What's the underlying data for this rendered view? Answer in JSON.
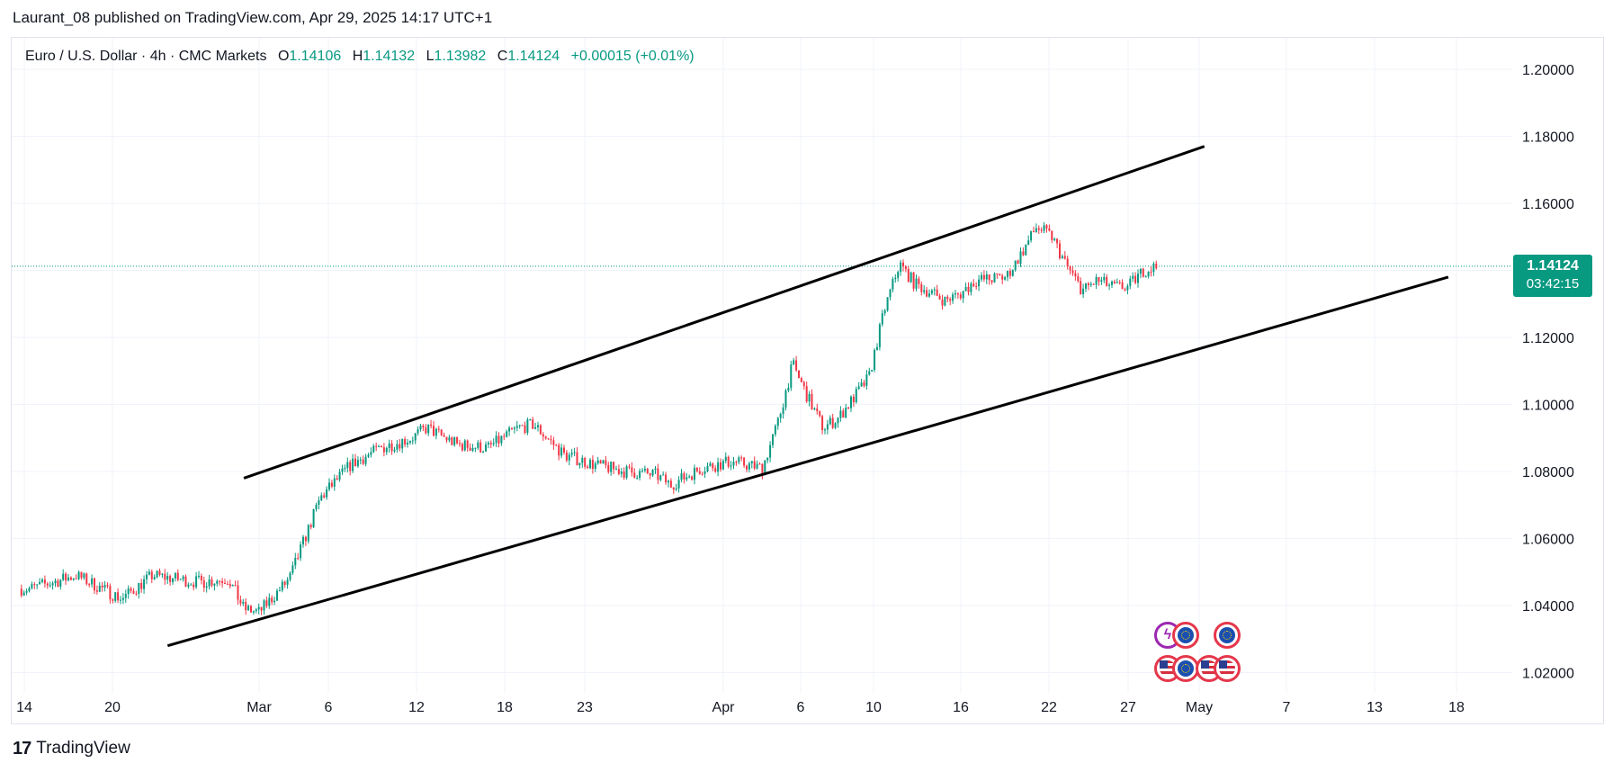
{
  "header": {
    "published": "Laurant_08 published on TradingView.com, Apr 29, 2025 14:17 UTC+1"
  },
  "legend": {
    "symbol": "Euro / U.S. Dollar · 4h · CMC Markets",
    "o_label": "O",
    "o": "1.14106",
    "h_label": "H",
    "h": "1.14132",
    "l_label": "L",
    "l": "1.13982",
    "c_label": "C",
    "c": "1.14124",
    "change": "+0.00015 (+0.01%)"
  },
  "price_tag": {
    "price": "1.14124",
    "countdown": "03:42:15"
  },
  "footer": {
    "logo": "17",
    "brand": "TradingView"
  },
  "events": {
    "icons": [
      "flash-icon",
      "eu-flag-icon",
      "eu-flag-icon",
      "us-flag-icon",
      "us-flag-icon",
      "us-flag-icon",
      "us-flag-icon"
    ]
  },
  "chart_data": {
    "type": "candlestick",
    "symbol": "EURUSD",
    "timeframe": "4h",
    "x_tick_labels": [
      "14",
      "20",
      "Mar",
      "6",
      "12",
      "18",
      "23",
      "Apr",
      "6",
      "10",
      "16",
      "22",
      "27",
      "May",
      "7",
      "13",
      "18"
    ],
    "y_tick_labels": [
      "1.20000",
      "1.18000",
      "1.16000",
      "1.14000",
      "1.12000",
      "1.10000",
      "1.08000",
      "1.06000",
      "1.04000",
      "1.02000"
    ],
    "ylim": [
      1.012,
      1.207
    ],
    "last_price": 1.14124,
    "colors": {
      "up": "#089981",
      "down": "#f23645",
      "grid": "#f0f3fa",
      "trendline": "#000000"
    },
    "approx_close_path": [
      [
        "Feb 14",
        1.045
      ],
      [
        "Feb 17",
        1.049
      ],
      [
        "Feb 20",
        1.042
      ],
      [
        "Feb 22",
        1.049
      ],
      [
        "Feb 25",
        1.047
      ],
      [
        "Feb 27",
        1.048
      ],
      [
        "Feb 28",
        1.039
      ],
      [
        "Mar 1",
        1.038
      ],
      [
        "Mar 3",
        1.048
      ],
      [
        "Mar 5",
        1.072
      ],
      [
        "Mar 7",
        1.082
      ],
      [
        "Mar 9",
        1.087
      ],
      [
        "Mar 11",
        1.09
      ],
      [
        "Mar 12",
        1.093
      ],
      [
        "Mar 14",
        1.088
      ],
      [
        "Mar 16",
        1.087
      ],
      [
        "Mar 18",
        1.093
      ],
      [
        "Mar 19",
        1.094
      ],
      [
        "Mar 21",
        1.085
      ],
      [
        "Mar 23",
        1.082
      ],
      [
        "Mar 25",
        1.08
      ],
      [
        "Mar 27",
        1.079
      ],
      [
        "Mar 28",
        1.076
      ],
      [
        "Mar 30",
        1.081
      ],
      [
        "Apr 1",
        1.083
      ],
      [
        "Apr 3",
        1.081
      ],
      [
        "Apr 4",
        1.094
      ],
      [
        "Apr 5",
        1.112
      ],
      [
        "Apr 6",
        1.102
      ],
      [
        "Apr 7",
        1.093
      ],
      [
        "Apr 8",
        1.096
      ],
      [
        "Apr 9",
        1.102
      ],
      [
        "Apr 10",
        1.108
      ],
      [
        "Apr 11",
        1.128
      ],
      [
        "Apr 12",
        1.142
      ],
      [
        "Apr 13",
        1.136
      ],
      [
        "Apr 15",
        1.131
      ],
      [
        "Apr 16",
        1.133
      ],
      [
        "Apr 17",
        1.137
      ],
      [
        "Apr 19",
        1.138
      ],
      [
        "Apr 20",
        1.145
      ],
      [
        "Apr 21",
        1.153
      ],
      [
        "Apr 22",
        1.15
      ],
      [
        "Apr 23",
        1.141
      ],
      [
        "Apr 24",
        1.134
      ],
      [
        "Apr 25",
        1.137
      ],
      [
        "Apr 26",
        1.135
      ],
      [
        "Apr 27",
        1.135
      ],
      [
        "Apr 28",
        1.14
      ],
      [
        "Apr 29",
        1.14124
      ]
    ],
    "trendlines": [
      {
        "name": "upper-channel",
        "from": [
          "Feb 28",
          1.078
        ],
        "to": [
          "May 2",
          1.177
        ]
      },
      {
        "name": "lower-channel",
        "from": [
          "Feb 23",
          1.028
        ],
        "to": [
          "May 18",
          1.138
        ]
      }
    ]
  }
}
